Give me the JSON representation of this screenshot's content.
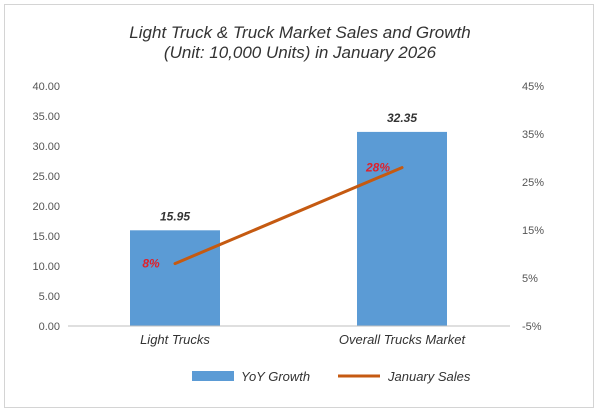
{
  "chart_data": {
    "type": "bar",
    "title_lines": [
      "Light Truck & Truck Market Sales and Growth",
      "(Unit: 10,000 Units) in January 2026"
    ],
    "categories": [
      "Light Trucks",
      "Overall Trucks Market"
    ],
    "series": [
      {
        "name": "YoY Growth",
        "type": "bar",
        "axis": "left",
        "values": [
          15.95,
          32.35
        ],
        "labels": [
          "15.95",
          "32.35"
        ],
        "color": "#5b9bd5"
      },
      {
        "name": "January Sales",
        "type": "line",
        "axis": "right",
        "values": [
          8,
          28
        ],
        "labels": [
          "8%",
          "28%"
        ],
        "color": "#c55a11"
      }
    ],
    "y_left": {
      "min": 0,
      "max": 40,
      "step": 5,
      "tick_labels": [
        "0.00",
        "5.00",
        "10.00",
        "15.00",
        "20.00",
        "25.00",
        "30.00",
        "35.00",
        "40.00"
      ]
    },
    "y_right": {
      "min": -5,
      "max": 45,
      "step": 10,
      "tick_labels": [
        "-5%",
        "5%",
        "15%",
        "25%",
        "35%",
        "45%"
      ]
    },
    "grid": false,
    "legend_position": "bottom",
    "colors": {
      "bar": "#5b9bd5",
      "line": "#c55a11",
      "point_label": "#e0202a",
      "axis": "#bfbfbf"
    }
  }
}
